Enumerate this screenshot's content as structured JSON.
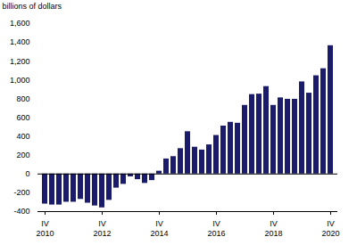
{
  "chart_data": {
    "type": "bar",
    "y_label": "billions of dollars",
    "categories": [
      "IV\n2010",
      null,
      null,
      null,
      null,
      null,
      null,
      null,
      "IV\n2012",
      null,
      null,
      null,
      null,
      null,
      null,
      null,
      "IV\n2014",
      null,
      null,
      null,
      null,
      null,
      null,
      null,
      "IV\n2016",
      null,
      null,
      null,
      null,
      null,
      null,
      null,
      "IV\n2018",
      null,
      null,
      null,
      null,
      null,
      null,
      null,
      "IV\n2020"
    ],
    "values": [
      -320,
      -330,
      -330,
      -300,
      -300,
      -270,
      -310,
      -340,
      -360,
      -280,
      -150,
      -110,
      -30,
      -60,
      -100,
      -70,
      30,
      160,
      185,
      270,
      450,
      285,
      255,
      310,
      410,
      510,
      550,
      540,
      730,
      845,
      850,
      930,
      730,
      810,
      795,
      795,
      980,
      860,
      1045,
      1120,
      1365
    ],
    "color": "#1b1b6b",
    "ylim": [
      -400,
      1600
    ],
    "yticks": [
      -400,
      -200,
      0,
      200,
      400,
      600,
      800,
      {
        "value": 1000,
        "label": "1,000"
      },
      {
        "value": 1200,
        "label": "1,200"
      },
      {
        "value": 1400,
        "label": "1,400"
      },
      {
        "value": 1600,
        "label": "1,600"
      }
    ],
    "grid": false
  }
}
